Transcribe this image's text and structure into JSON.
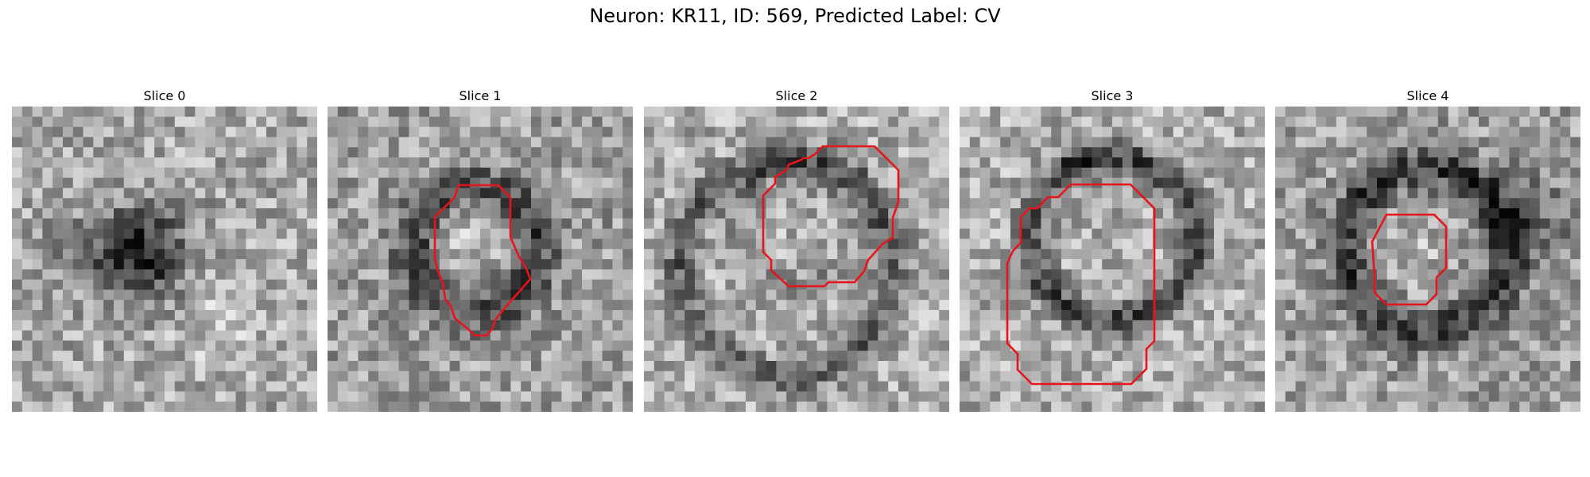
{
  "figure": {
    "title": "Neuron: KR11, ID: 569, Predicted Label: CV"
  },
  "panels": [
    {
      "title": "Slice 0",
      "outline": false
    },
    {
      "title": "Slice 1",
      "outline": true
    },
    {
      "title": "Slice 2",
      "outline": true
    },
    {
      "title": "Slice 3",
      "outline": true
    },
    {
      "title": "Slice 4",
      "outline": true
    }
  ],
  "colors": {
    "outline": "#e8141c",
    "background": "#ffffff"
  }
}
